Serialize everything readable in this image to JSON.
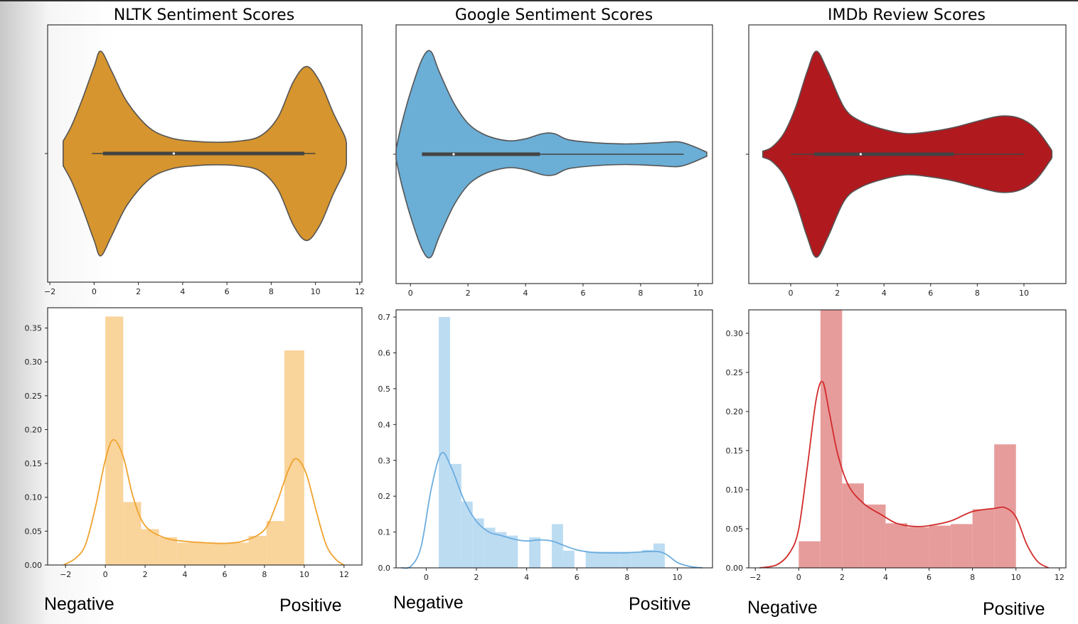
{
  "chart_data": [
    {
      "panel": "nltk-violin",
      "type": "violin",
      "title": "NLTK Sentiment Scores",
      "xlim": [
        -2.1,
        12.1
      ],
      "xticks": [
        -2,
        0,
        2,
        4,
        6,
        8,
        10,
        12
      ],
      "color": "#d6952e",
      "density": [
        [
          -1.4,
          0.12
        ],
        [
          -1.0,
          0.28
        ],
        [
          -0.5,
          0.55
        ],
        [
          0,
          0.85
        ],
        [
          0.3,
          1.0
        ],
        [
          0.8,
          0.8
        ],
        [
          1.5,
          0.5
        ],
        [
          2.5,
          0.25
        ],
        [
          3.5,
          0.15
        ],
        [
          4.5,
          0.12
        ],
        [
          5.5,
          0.11
        ],
        [
          6.5,
          0.12
        ],
        [
          7.5,
          0.17
        ],
        [
          8.3,
          0.35
        ],
        [
          9.0,
          0.7
        ],
        [
          9.6,
          0.85
        ],
        [
          10.2,
          0.7
        ],
        [
          10.8,
          0.4
        ],
        [
          11.3,
          0.18
        ],
        [
          11.4,
          0.1
        ]
      ],
      "whisker": [
        -0.1,
        10.0
      ],
      "box": [
        0.4,
        9.5
      ],
      "median": 3.6
    },
    {
      "panel": "google-violin",
      "type": "violin",
      "title": "Google Sentiment Scores",
      "xlim": [
        -0.5,
        10.5
      ],
      "xticks": [
        0,
        2,
        4,
        6,
        8,
        10
      ],
      "color": "#6baed6",
      "density": [
        [
          -0.5,
          0.05
        ],
        [
          -0.3,
          0.3
        ],
        [
          0,
          0.6
        ],
        [
          0.4,
          0.92
        ],
        [
          0.7,
          1.0
        ],
        [
          1.0,
          0.8
        ],
        [
          1.5,
          0.5
        ],
        [
          2.0,
          0.3
        ],
        [
          2.5,
          0.2
        ],
        [
          3.0,
          0.15
        ],
        [
          3.5,
          0.13
        ],
        [
          4.0,
          0.15
        ],
        [
          4.6,
          0.2
        ],
        [
          5.0,
          0.2
        ],
        [
          5.5,
          0.14
        ],
        [
          6.5,
          0.11
        ],
        [
          7.5,
          0.1
        ],
        [
          8.5,
          0.11
        ],
        [
          9.3,
          0.12
        ],
        [
          9.8,
          0.08
        ],
        [
          10.3,
          0.02
        ]
      ],
      "whisker": [
        0.4,
        9.5
      ],
      "box": [
        0.4,
        4.5
      ],
      "median": 1.5
    },
    {
      "panel": "imdb-violin",
      "type": "violin",
      "title": "IMDb Review Scores",
      "xlim": [
        -1.8,
        11.8
      ],
      "xticks": [
        0,
        2,
        4,
        6,
        8,
        10
      ],
      "color": "#b0191e",
      "density": [
        [
          -1.2,
          0.03
        ],
        [
          -0.8,
          0.07
        ],
        [
          -0.3,
          0.2
        ],
        [
          0.2,
          0.45
        ],
        [
          0.7,
          0.8
        ],
        [
          1.1,
          1.0
        ],
        [
          1.6,
          0.8
        ],
        [
          2.3,
          0.45
        ],
        [
          3.0,
          0.32
        ],
        [
          4.0,
          0.24
        ],
        [
          5.0,
          0.2
        ],
        [
          6.0,
          0.22
        ],
        [
          7.0,
          0.26
        ],
        [
          8.0,
          0.32
        ],
        [
          9.0,
          0.37
        ],
        [
          9.8,
          0.35
        ],
        [
          10.5,
          0.25
        ],
        [
          11.1,
          0.07
        ],
        [
          11.2,
          0.03
        ]
      ],
      "whisker": [
        0.0,
        10.0
      ],
      "box": [
        1.0,
        7.0
      ],
      "median": 3.0
    },
    {
      "panel": "nltk-hist",
      "type": "histogram",
      "xlim": [
        -2.9,
        12.9
      ],
      "ylim": [
        0,
        0.38
      ],
      "xticks": [
        -2,
        0,
        2,
        4,
        6,
        8,
        10,
        12
      ],
      "yticks": [
        0.0,
        0.05,
        0.1,
        0.15,
        0.2,
        0.25,
        0.3,
        0.35
      ],
      "ytick_labels": [
        "0.00",
        "0.05",
        "0.10",
        "0.15",
        "0.20",
        "0.25",
        "0.30",
        "0.35"
      ],
      "bar_color": "#f9d49b",
      "line_color": "#f0a22e",
      "bin_edges": [
        0,
        0.9,
        1.8,
        2.7,
        3.6,
        4.5,
        5.4,
        6.3,
        7.2,
        8.1,
        9.0,
        10.0
      ],
      "counts": [
        0.367,
        0.093,
        0.053,
        0.041,
        0.033,
        0.033,
        0.033,
        0.033,
        0.043,
        0.065,
        0.317
      ],
      "kde": [
        [
          -2.1,
          0.0
        ],
        [
          -1.5,
          0.01
        ],
        [
          -1.0,
          0.03
        ],
        [
          -0.5,
          0.085
        ],
        [
          0,
          0.155
        ],
        [
          0.4,
          0.185
        ],
        [
          0.9,
          0.16
        ],
        [
          1.4,
          0.1
        ],
        [
          2.0,
          0.058
        ],
        [
          3.0,
          0.04
        ],
        [
          4.0,
          0.035
        ],
        [
          5.0,
          0.033
        ],
        [
          6.0,
          0.032
        ],
        [
          7.0,
          0.036
        ],
        [
          8.0,
          0.052
        ],
        [
          8.6,
          0.09
        ],
        [
          9.2,
          0.14
        ],
        [
          9.6,
          0.157
        ],
        [
          10.1,
          0.135
        ],
        [
          10.6,
          0.08
        ],
        [
          11.1,
          0.03
        ],
        [
          11.6,
          0.008
        ],
        [
          12.0,
          0.0
        ]
      ]
    },
    {
      "panel": "google-hist",
      "type": "histogram",
      "xlim": [
        -1.2,
        11.4
      ],
      "ylim": [
        0,
        0.72
      ],
      "xticks": [
        0,
        2,
        4,
        6,
        8,
        10
      ],
      "yticks": [
        0.0,
        0.1,
        0.2,
        0.3,
        0.4,
        0.5,
        0.6,
        0.7
      ],
      "ytick_labels": [
        "0.0",
        "0.1",
        "0.2",
        "0.3",
        "0.4",
        "0.5",
        "0.6",
        "0.7"
      ],
      "bar_color": "#bcdcf2",
      "line_color": "#6caddf",
      "bin_edges": [
        0.5,
        0.95,
        1.4,
        1.85,
        2.3,
        2.75,
        3.2,
        3.65,
        4.1,
        4.55,
        5.0,
        5.45,
        5.9,
        6.35,
        6.8,
        7.25,
        7.7,
        8.15,
        8.6,
        9.05,
        9.5
      ],
      "counts": [
        0.7,
        0.29,
        0.185,
        0.138,
        0.112,
        0.1,
        0.09,
        0.0,
        0.085,
        0.0,
        0.122,
        0.048,
        0.0,
        0.045,
        0.045,
        0.045,
        0.045,
        0.045,
        0.05,
        0.068
      ],
      "kde": [
        [
          -1.0,
          0.0
        ],
        [
          -0.6,
          0.005
        ],
        [
          -0.2,
          0.06
        ],
        [
          0.2,
          0.22
        ],
        [
          0.6,
          0.32
        ],
        [
          1.0,
          0.28
        ],
        [
          1.5,
          0.19
        ],
        [
          2.0,
          0.13
        ],
        [
          2.5,
          0.1
        ],
        [
          3.0,
          0.09
        ],
        [
          3.5,
          0.08
        ],
        [
          4.0,
          0.075
        ],
        [
          4.5,
          0.078
        ],
        [
          5.0,
          0.075
        ],
        [
          5.5,
          0.062
        ],
        [
          6.0,
          0.05
        ],
        [
          6.5,
          0.044
        ],
        [
          7.0,
          0.042
        ],
        [
          8.0,
          0.042
        ],
        [
          9.0,
          0.046
        ],
        [
          9.5,
          0.04
        ],
        [
          10.0,
          0.015
        ],
        [
          10.5,
          0.004
        ],
        [
          11.0,
          0.0
        ]
      ]
    },
    {
      "panel": "imdb-hist",
      "type": "histogram",
      "xlim": [
        -2.3,
        12.3
      ],
      "ylim": [
        0,
        0.33
      ],
      "xticks": [
        -2,
        0,
        2,
        4,
        6,
        8,
        10,
        12
      ],
      "yticks": [
        0.0,
        0.05,
        0.1,
        0.15,
        0.2,
        0.25,
        0.3
      ],
      "ytick_labels": [
        "0.00",
        "0.05",
        "0.10",
        "0.15",
        "0.20",
        "0.25",
        "0.30"
      ],
      "bar_color": "#e79c9c",
      "line_color": "#d22b2b",
      "bin_edges": [
        0,
        1,
        2,
        3,
        4,
        5,
        6,
        7,
        8,
        9,
        10
      ],
      "counts": [
        0.034,
        0.33,
        0.108,
        0.081,
        0.057,
        0.052,
        0.054,
        0.056,
        0.075,
        0.158
      ],
      "kde": [
        [
          -1.8,
          0.0
        ],
        [
          -1.0,
          0.004
        ],
        [
          -0.4,
          0.02
        ],
        [
          0.0,
          0.05
        ],
        [
          0.4,
          0.13
        ],
        [
          0.8,
          0.215
        ],
        [
          1.1,
          0.238
        ],
        [
          1.4,
          0.2
        ],
        [
          1.8,
          0.145
        ],
        [
          2.3,
          0.105
        ],
        [
          3.0,
          0.082
        ],
        [
          3.8,
          0.068
        ],
        [
          4.5,
          0.057
        ],
        [
          5.3,
          0.053
        ],
        [
          6.0,
          0.054
        ],
        [
          7.0,
          0.06
        ],
        [
          8.0,
          0.072
        ],
        [
          9.0,
          0.076
        ],
        [
          9.5,
          0.077
        ],
        [
          10.0,
          0.065
        ],
        [
          10.5,
          0.03
        ],
        [
          11.0,
          0.008
        ],
        [
          11.5,
          0.0
        ]
      ]
    }
  ],
  "labels": {
    "neg1": "Negative",
    "pos1": "Positive",
    "neg2": "Negative",
    "pos2": "Positive",
    "neg3": "Negative",
    "pos3": "Positive"
  }
}
